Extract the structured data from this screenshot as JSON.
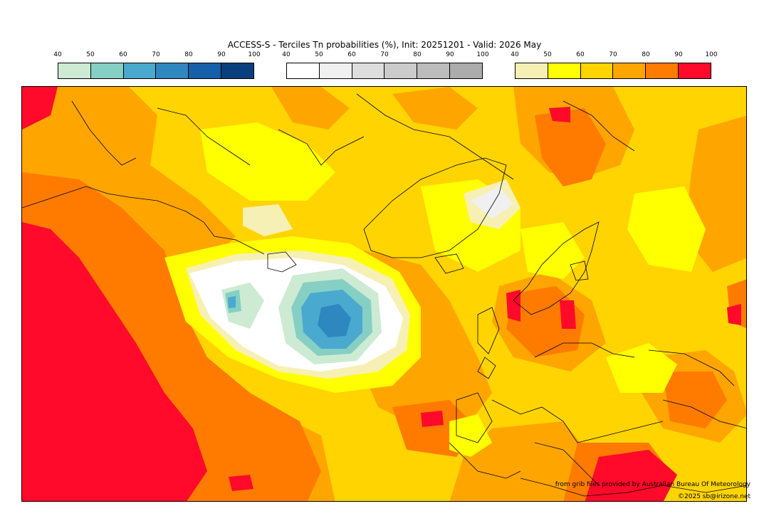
{
  "title": "ACCESS-S - Terciles Tn probabilities (%), Init: 20251201 - Valid: 2026 May",
  "legends": [
    {
      "ticks": [
        "40",
        "50",
        "60",
        "70",
        "80",
        "90",
        "100"
      ],
      "colors": [
        "#cdebd3",
        "#86cfc4",
        "#4aa9cf",
        "#2f87bf",
        "#1560a8",
        "#093f7d"
      ]
    },
    {
      "ticks": [
        "40",
        "50",
        "60",
        "70",
        "80",
        "90",
        "100"
      ],
      "colors": [
        "#ffffff",
        "#f0f0f0",
        "#dedede",
        "#cbcbcb",
        "#bcbcbc",
        "#acacac"
      ]
    },
    {
      "ticks": [
        "40",
        "50",
        "60",
        "70",
        "80",
        "90",
        "100"
      ],
      "colors": [
        "#f7f0b4",
        "#ffff00",
        "#ffd400",
        "#ffa500",
        "#ff7b00",
        "#ff0a2a"
      ]
    }
  ],
  "credit_line1": "from grib files provided by Australian Bureau Of Meteorology",
  "credit_line2": "©2025 sb@irizone.net"
}
